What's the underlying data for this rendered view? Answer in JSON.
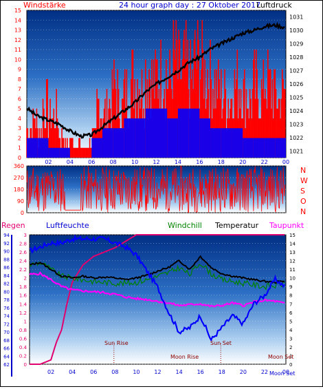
{
  "header": {
    "left": "Windstärke",
    "center": "24 hour graph day : 27 Oktober 2017",
    "right": "Luftdruck"
  },
  "colors": {
    "wind": "#ff0000",
    "gust_low": "#0000ff",
    "pressure": "#000000",
    "humidity": "#0000ff",
    "windchill": "#008000",
    "temperature": "#000000",
    "dewpoint": "#ff00ff",
    "rain": "#e0006f",
    "bg_top": "#003a8c",
    "bg_bottom": "#ffffff",
    "axis_left": "#ff0000",
    "axis_right": "#0000cc"
  },
  "chart_data": [
    {
      "type": "bar",
      "title": "",
      "x_ticks": [
        "02",
        "04",
        "06",
        "08",
        "10",
        "12",
        "14",
        "16",
        "18",
        "20",
        "22",
        "00"
      ],
      "y_left_label": "Windstärke",
      "y_left_ticks": [
        "0",
        "1",
        "2",
        "3",
        "4",
        "5",
        "6",
        "7",
        "8",
        "9",
        "10",
        "11",
        "12",
        "13",
        "14",
        "15"
      ],
      "y_left_range": [
        0,
        15
      ],
      "y_right_label": "Luftdruck",
      "y_right_ticks": [
        "1021",
        "1022",
        "1023",
        "1024",
        "1025",
        "1026",
        "1027",
        "1028",
        "1029",
        "1030",
        "1031"
      ],
      "y_right_range": [
        1020.5,
        1031.5
      ],
      "series": [
        {
          "name": "Windstärke",
          "kind": "bars",
          "hours": [
            0,
            0.5,
            1,
            1.5,
            2,
            2.5,
            3,
            3.5,
            4,
            4.5,
            5,
            5.5,
            6,
            6.5,
            7,
            7.5,
            8,
            8.5,
            9,
            9.5,
            10,
            10.5,
            11,
            11.5,
            12,
            12.5,
            13,
            13.5,
            14,
            14.5,
            15,
            15.5,
            16,
            16.5,
            17,
            17.5,
            18,
            18.5,
            19,
            19.5,
            20,
            20.5,
            21,
            21.5,
            22,
            22.5,
            23,
            23.5
          ],
          "values": [
            5,
            6,
            4,
            8,
            6,
            7,
            3,
            2,
            3,
            2,
            1,
            2,
            3,
            8,
            7,
            9,
            11,
            8,
            10,
            12,
            13,
            11,
            14,
            12,
            13,
            14,
            12,
            15,
            13,
            14,
            12,
            15,
            14,
            13,
            12,
            11,
            10,
            9,
            11,
            12,
            10,
            9,
            11,
            10,
            12,
            11,
            9,
            10
          ]
        },
        {
          "name": "",
          "kind": "low_bars",
          "hours": [
            0,
            1,
            2,
            3,
            4,
            5,
            6,
            7,
            8,
            9,
            10,
            11,
            12,
            13,
            14,
            15,
            16,
            17,
            18,
            19,
            20,
            21,
            22,
            23
          ],
          "values": [
            2,
            2,
            1,
            1,
            0,
            0,
            2,
            3,
            3,
            4,
            4,
            5,
            5,
            4,
            5,
            5,
            4,
            3,
            3,
            3,
            2,
            2,
            2,
            2
          ]
        },
        {
          "name": "Luftdruck",
          "kind": "line",
          "hours": [
            0,
            1,
            2,
            3,
            4,
            5,
            6,
            7,
            8,
            9,
            10,
            11,
            12,
            13,
            14,
            15,
            16,
            17,
            18,
            19,
            20,
            21,
            22,
            23,
            24
          ],
          "values": [
            1024.2,
            1023.6,
            1023.3,
            1023.0,
            1022.5,
            1022.1,
            1022.2,
            1022.8,
            1023.4,
            1024.0,
            1024.6,
            1025.4,
            1026.0,
            1026.5,
            1027.0,
            1027.6,
            1028.0,
            1028.6,
            1029.0,
            1029.4,
            1029.8,
            1030.0,
            1030.3,
            1030.4,
            1030.2
          ]
        }
      ]
    },
    {
      "type": "line",
      "title": "",
      "y_ticks": [
        "0",
        "90",
        "180",
        "270",
        "360"
      ],
      "y_range": [
        0,
        360
      ],
      "side_labels": [
        "N",
        "W",
        "S",
        "O",
        "N"
      ],
      "series": [
        {
          "name": "",
          "hours_range": [
            0,
            24
          ],
          "note_pattern": "noisy"
        }
      ]
    },
    {
      "type": "line",
      "legend": [
        "Regen",
        "Luftfeuchte",
        "Windchill",
        "Temperatur",
        "Taupunkt"
      ],
      "x_ticks": [
        "02",
        "04",
        "06",
        "08",
        "10",
        "12",
        "14",
        "16",
        "18",
        "20",
        "22",
        "00"
      ],
      "y_rain_ticks": [
        "0",
        "0.2",
        "0.4",
        "0.6",
        "0.8",
        "1",
        "1.2",
        "1.4",
        "1.6",
        "1.8",
        "2",
        "2.2",
        "2.4",
        "2.6",
        "2.8",
        "3"
      ],
      "y_rain_range": [
        0,
        3
      ],
      "y_hum_ticks": [
        "62",
        "64",
        "66",
        "68",
        "70",
        "72",
        "74",
        "76",
        "78",
        "80",
        "82",
        "84",
        "86",
        "88",
        "90",
        "92",
        "94"
      ],
      "y_hum_range": [
        62,
        94
      ],
      "y_temp_ticks": [
        "0",
        "1",
        "2",
        "3",
        "4",
        "5",
        "6",
        "7",
        "8",
        "9",
        "10",
        "11",
        "12",
        "13",
        "14",
        "15"
      ],
      "y_temp_range": [
        0,
        15
      ],
      "annotations": [
        "Sun Rise",
        "Moon Rise",
        "Sun Set",
        "Moon Set"
      ],
      "series": [
        {
          "name": "Luftfeuchte",
          "hours": [
            0,
            1,
            2,
            3,
            4,
            5,
            6,
            7,
            8,
            9,
            10,
            11,
            12,
            13,
            14,
            15,
            16,
            17,
            18,
            19,
            20,
            21,
            22,
            23,
            24
          ],
          "values": [
            90,
            91,
            92,
            92,
            93,
            93,
            93,
            93,
            92,
            91,
            89,
            85,
            81,
            75,
            70,
            71,
            74,
            68,
            71,
            74,
            72,
            77,
            79,
            83,
            81
          ]
        },
        {
          "name": "Temperatur",
          "hours": [
            0,
            1,
            2,
            3,
            4,
            5,
            6,
            7,
            8,
            9,
            10,
            11,
            12,
            13,
            14,
            15,
            16,
            17,
            18,
            19,
            20,
            21,
            22,
            23,
            24
          ],
          "values": [
            11.5,
            11.8,
            11.0,
            10.2,
            10.0,
            10.2,
            10.0,
            10.1,
            10.0,
            9.8,
            10.0,
            10.3,
            10.8,
            11.2,
            12.0,
            11.0,
            12.5,
            11.2,
            10.5,
            10.2,
            10.0,
            9.8,
            9.6,
            9.5,
            9.7
          ]
        },
        {
          "name": "Windchill",
          "hours": [
            0,
            1,
            2,
            3,
            4,
            5,
            6,
            7,
            8,
            9,
            10,
            11,
            12,
            13,
            14,
            15,
            16,
            17,
            18,
            19,
            20,
            21,
            22,
            23,
            24
          ],
          "values": [
            11.5,
            11.8,
            11.0,
            10.2,
            10.0,
            9.8,
            9.6,
            9.5,
            9.4,
            9.4,
            9.5,
            9.8,
            10.2,
            10.6,
            11.2,
            10.4,
            11.8,
            10.5,
            9.8,
            9.6,
            9.4,
            9.2,
            9.0,
            9.1,
            9.4
          ]
        },
        {
          "name": "Taupunkt",
          "hours": [
            0,
            1,
            2,
            3,
            4,
            5,
            6,
            7,
            8,
            9,
            10,
            11,
            12,
            13,
            14,
            15,
            16,
            17,
            18,
            19,
            20,
            21,
            22,
            23,
            24
          ],
          "values": [
            10.4,
            10.5,
            9.8,
            9.0,
            8.6,
            8.5,
            8.4,
            8.3,
            8.1,
            7.8,
            7.6,
            7.5,
            7.3,
            7.1,
            6.8,
            6.9,
            7.0,
            6.7,
            6.8,
            7.1,
            6.8,
            7.2,
            7.4,
            7.3,
            7.0
          ]
        },
        {
          "name": "Regen",
          "hours": [
            0,
            1,
            2,
            2.5,
            3,
            3.5,
            4,
            5,
            6,
            7,
            8,
            10,
            11,
            12,
            13,
            14,
            15,
            16,
            17,
            18,
            19,
            20,
            21,
            22,
            23,
            24
          ],
          "values": [
            0,
            0,
            0.1,
            0.5,
            0.8,
            1.4,
            1.9,
            2.3,
            2.5,
            2.6,
            2.7,
            3.0,
            3.0,
            3.0,
            3.0,
            3.0,
            3.0,
            3.0,
            3.0,
            3.0,
            3.0,
            3.0,
            3.0,
            3.0,
            3.0,
            3.0
          ]
        }
      ]
    }
  ],
  "labels": {
    "regen": "Regen",
    "luftfeuchte": "Luftfeuchte",
    "windchill": "Windchill",
    "temperatur": "Temperatur",
    "taupunkt": "Taupunkt",
    "sun_rise": "Sun Rise",
    "moon_rise": "Moon Rise",
    "sun_set": "Sun Set",
    "moon_set": "Moon Set",
    "moon_set_2": "Moon Set"
  }
}
